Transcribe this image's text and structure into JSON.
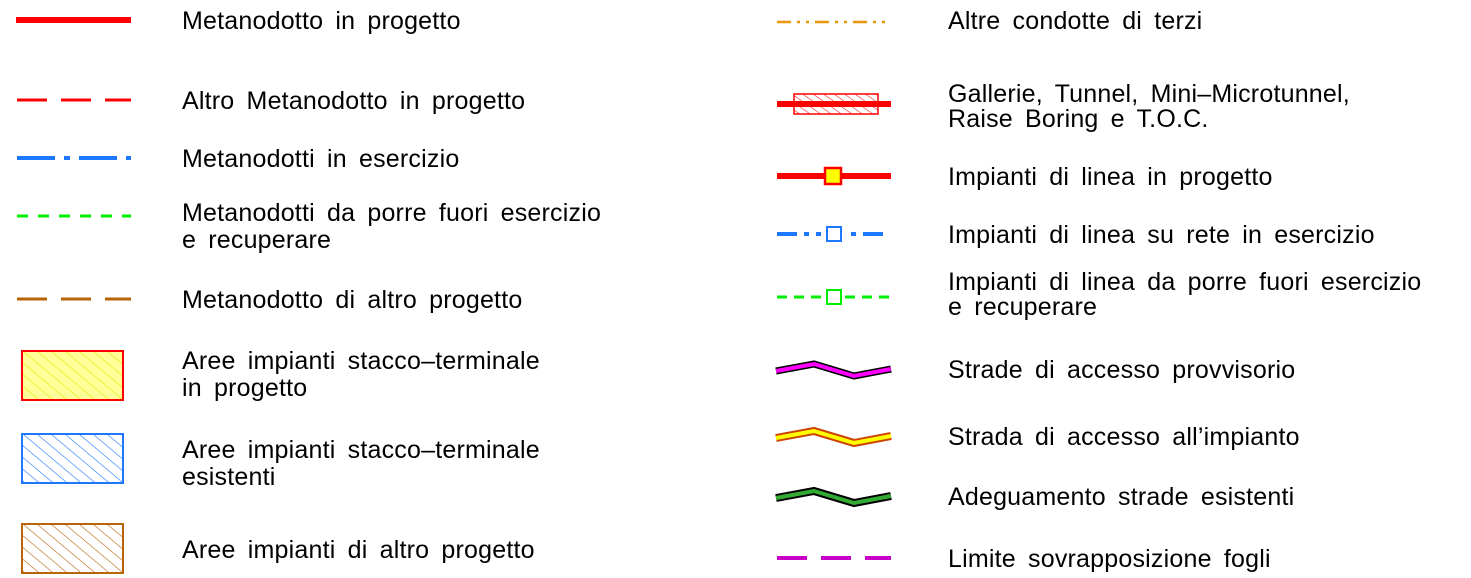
{
  "legend": {
    "left": [
      {
        "label": "Metanodotto  in  progetto",
        "symbol": "solid-red-line-icon",
        "color": "#ff0000"
      },
      {
        "label": "Altro  Metanodotto  in  progetto",
        "symbol": "dashed-red-line-icon",
        "color": "#ff0000"
      },
      {
        "label": "Metanodotti  in  esercizio",
        "symbol": "dash-dot-blue-line-icon",
        "color": "#1e78ff"
      },
      {
        "label": "Metanodotti da  porre  fuori esercizio\ne  recuperare",
        "symbol": "dashed-green-line-icon",
        "color": "#00ee00"
      },
      {
        "label": "Metanodotto  di altro  progetto",
        "symbol": "dashed-brown-line-icon",
        "color": "#b8650a"
      },
      {
        "label": "Aree  impianti stacco–terminale\nin  progetto",
        "symbol": "yellow-hatched-area-icon",
        "color": "#ffff66"
      },
      {
        "label": "Aree  impianti stacco–terminale\nesistenti",
        "symbol": "blue-hatched-area-icon",
        "color": "#1e78ff"
      },
      {
        "label": "Aree  impianti di altro  progetto",
        "symbol": "brown-hatched-area-icon",
        "color": "#b8650a"
      }
    ],
    "right": [
      {
        "label": "Altre  condotte  di terzi",
        "symbol": "dash-dot-orange-line-icon",
        "color": "#e8960a"
      },
      {
        "label": "Gallerie, Tunnel, Mini–Microtunnel,\nRaise  Boring  e  T.O.C.",
        "symbol": "tunnel-hatched-line-icon",
        "color": "#ff0000"
      },
      {
        "label": "Impianti di linea  in  progetto",
        "symbol": "red-line-with-yellow-node-icon",
        "color": "#ff0000"
      },
      {
        "label": "Impianti di linea  su  rete  in  esercizio",
        "symbol": "blue-line-with-node-icon",
        "color": "#1e78ff"
      },
      {
        "label": "Impianti di linea  da  porre  fuori esercizio\ne  recuperare",
        "symbol": "green-line-with-node-icon",
        "color": "#00ee00"
      },
      {
        "label": "Strade  di accesso  provvisorio",
        "symbol": "magenta-road-icon",
        "color": "#ff00ff"
      },
      {
        "label": "Strada  di  accesso  all’impianto",
        "symbol": "yellow-road-icon",
        "color": "#ffff00"
      },
      {
        "label": "Adeguamento  strade  esistenti",
        "symbol": "green-road-icon",
        "color": "#22aa22"
      },
      {
        "label": "Limite  sovrapposizione  fogli",
        "symbol": "magenta-dashed-line-icon",
        "color": "#c800c8"
      }
    ]
  }
}
